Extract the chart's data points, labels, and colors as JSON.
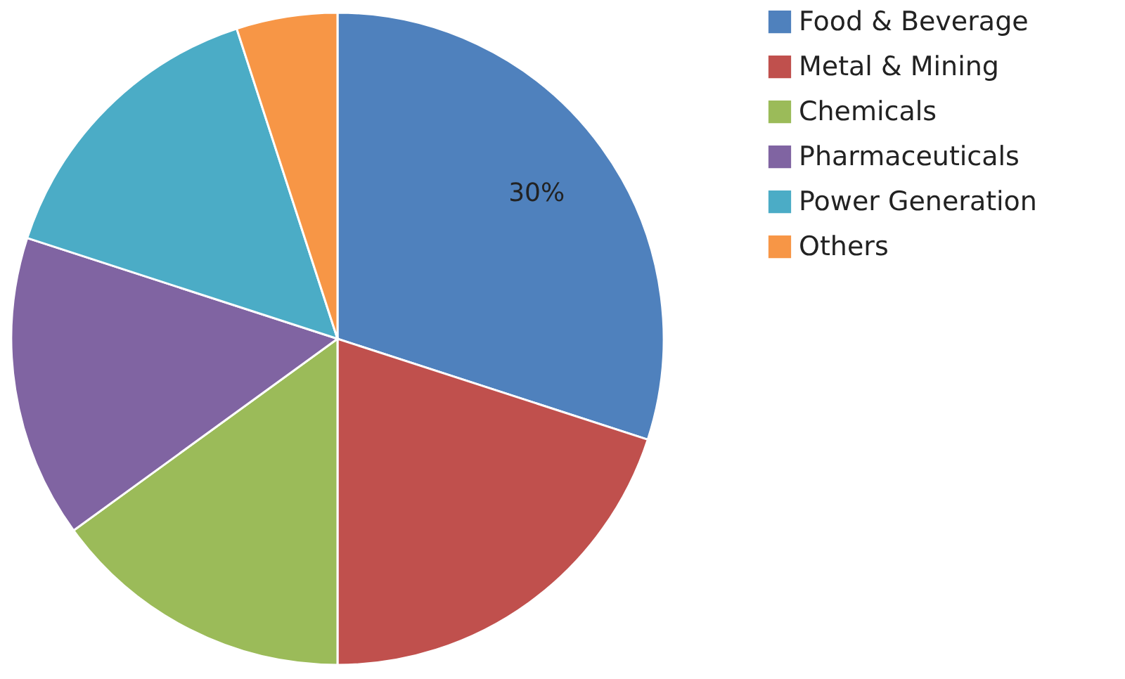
{
  "chart_data": {
    "type": "pie",
    "categories": [
      "Food & Beverage",
      "Metal & Mining",
      "Chemicals",
      "Pharmaceuticals",
      "Power Generation",
      "Others"
    ],
    "values": [
      30,
      20,
      15,
      15,
      15,
      5
    ],
    "colors": [
      "#4f81bd",
      "#c0504d",
      "#9bbb59",
      "#8064a2",
      "#4bacc6",
      "#f79646"
    ],
    "value_labels": [
      "30%",
      null,
      null,
      null,
      null,
      null
    ],
    "legend": "right"
  }
}
